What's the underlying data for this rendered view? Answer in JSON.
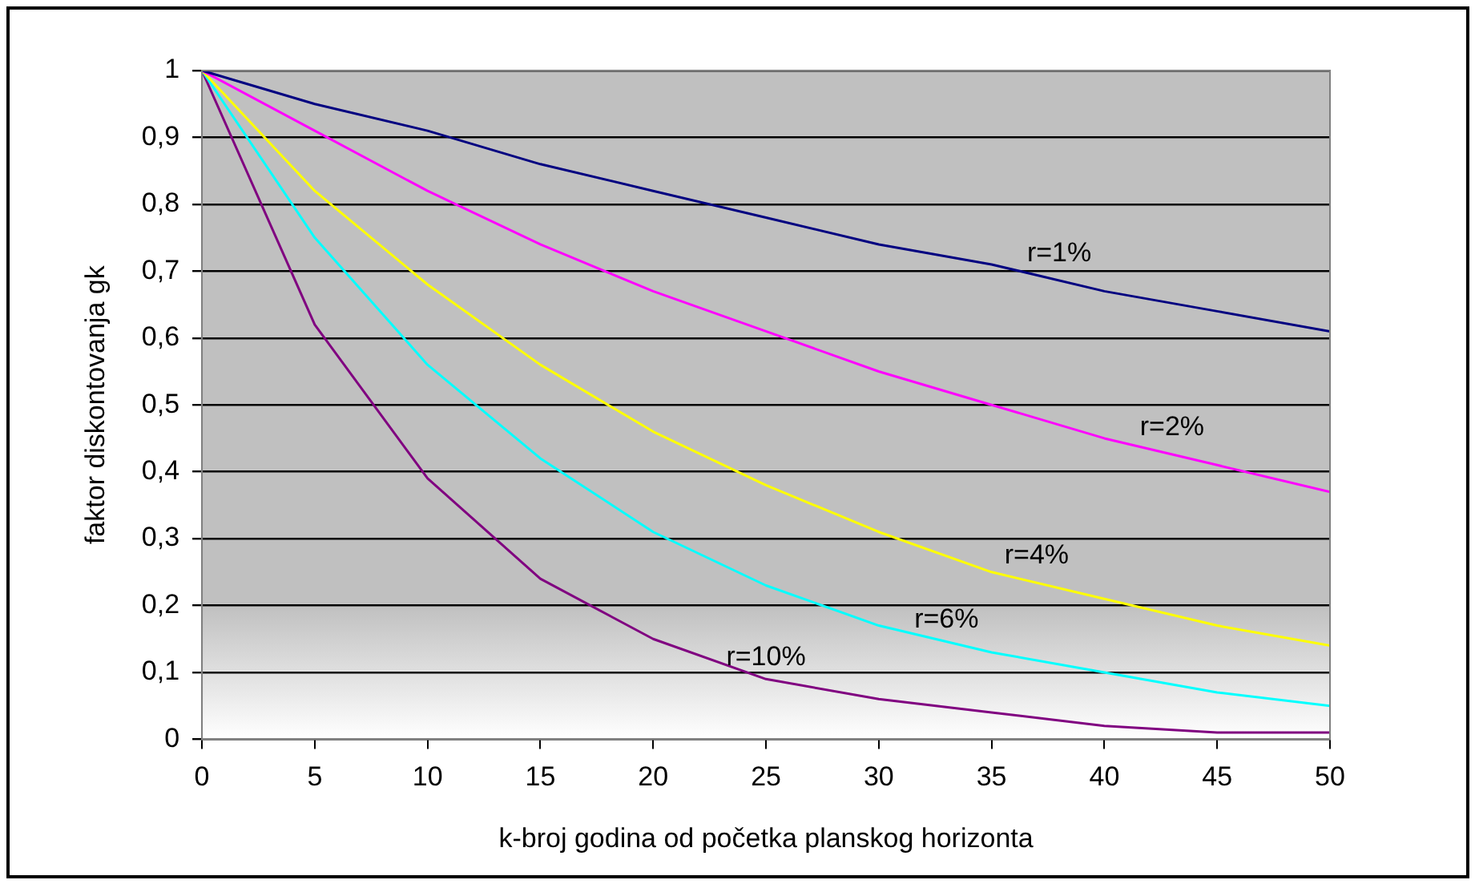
{
  "chart_data": {
    "type": "line",
    "xlabel": "k-broj godina od početka planskog horizonta",
    "ylabel": "faktor diskontovanja gk",
    "x": [
      0,
      5,
      10,
      15,
      20,
      25,
      30,
      35,
      40,
      45,
      50
    ],
    "series": [
      {
        "name": "r=1%",
        "color": "#000080",
        "values": [
          1,
          0.95,
          0.91,
          0.86,
          0.82,
          0.78,
          0.74,
          0.71,
          0.67,
          0.64,
          0.61
        ]
      },
      {
        "name": "r=2%",
        "color": "#ff00ff",
        "values": [
          1,
          0.91,
          0.82,
          0.74,
          0.67,
          0.61,
          0.55,
          0.5,
          0.45,
          0.41,
          0.37
        ]
      },
      {
        "name": "r=4%",
        "color": "#ffff00",
        "values": [
          1,
          0.82,
          0.68,
          0.56,
          0.46,
          0.38,
          0.31,
          0.25,
          0.21,
          0.17,
          0.14
        ]
      },
      {
        "name": "r=6%",
        "color": "#00ffff",
        "values": [
          1,
          0.75,
          0.56,
          0.42,
          0.31,
          0.23,
          0.17,
          0.13,
          0.1,
          0.07,
          0.05
        ]
      },
      {
        "name": "r=10%",
        "color": "#800080",
        "values": [
          1,
          0.62,
          0.39,
          0.24,
          0.15,
          0.09,
          0.06,
          0.04,
          0.02,
          0.01,
          0.01
        ]
      }
    ],
    "xlim": [
      0,
      50
    ],
    "xticks": [
      0,
      5,
      10,
      15,
      20,
      25,
      30,
      35,
      40,
      45,
      50
    ],
    "ylim": [
      0,
      1
    ],
    "yticks": [
      0,
      {
        "value": 0.1,
        "label": "0,1"
      },
      {
        "value": 0.2,
        "label": "0,2"
      },
      {
        "value": 0.3,
        "label": "0,3"
      },
      {
        "value": 0.4,
        "label": "0,4"
      },
      {
        "value": 0.5,
        "label": "0,5"
      },
      {
        "value": 0.6,
        "label": "0,6"
      },
      {
        "value": 0.7,
        "label": "0,7"
      },
      {
        "value": 0.8,
        "label": "0,8"
      },
      {
        "value": 0.9,
        "label": "0,9"
      },
      1
    ],
    "grid": "y",
    "legend": false,
    "marker": "none",
    "line_style": "solid"
  }
}
